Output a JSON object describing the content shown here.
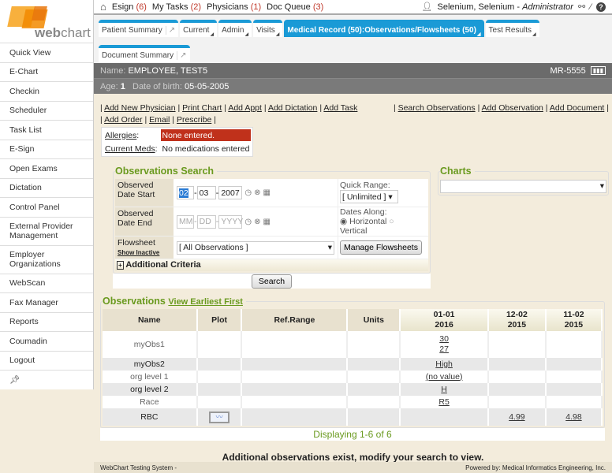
{
  "logo": {
    "text_a": "web",
    "text_b": "chart"
  },
  "sidebar": {
    "items": [
      {
        "label": "Quick View"
      },
      {
        "label": "E-Chart"
      },
      {
        "label": "Checkin"
      },
      {
        "label": "Scheduler"
      },
      {
        "label": "Task List"
      },
      {
        "label": "E-Sign"
      },
      {
        "label": "Open Exams"
      },
      {
        "label": "Dictation"
      },
      {
        "label": "Control Panel"
      },
      {
        "label": "External Provider Management"
      },
      {
        "label": "Employer Organizations"
      },
      {
        "label": "WebScan"
      },
      {
        "label": "Fax Manager"
      },
      {
        "label": "Reports"
      },
      {
        "label": "Coumadin"
      },
      {
        "label": "Logout"
      }
    ],
    "pin_icon": "pin-icon"
  },
  "topbar": {
    "nav": [
      {
        "label": "Esign",
        "count": "(6)"
      },
      {
        "label": "My Tasks",
        "count": "(2)"
      },
      {
        "label": "Physicians",
        "count": "(1)"
      },
      {
        "label": "Doc Queue",
        "count": "(3)"
      }
    ],
    "user": "Selenium, Selenium -",
    "role": "Administrator"
  },
  "tabs": [
    {
      "label": "Patient Summary",
      "ext": "↗"
    },
    {
      "label": "Current"
    },
    {
      "label": "Admin"
    },
    {
      "label": "Visits"
    },
    {
      "label": "Medical Record (50):Observations/Flowsheets (50)",
      "active": true
    },
    {
      "label": "Test Results"
    },
    {
      "label": "Document Summary",
      "ext": "↗"
    }
  ],
  "patient": {
    "name_label": "Name:",
    "name": "EMPLOYEE, TEST5",
    "mr": "MR-5555",
    "age_label": "Age:",
    "age": "1",
    "dob_label": "Date of birth:",
    "dob": "05-05-2005"
  },
  "links": {
    "left": [
      "Add New Physician",
      "Print Chart",
      "Add Appt",
      "Add Dictation",
      "Add Task",
      "Add Order",
      "Email",
      "Prescribe"
    ],
    "right": [
      "Search Observations",
      "Add Observation",
      "Add Document"
    ]
  },
  "allergies": {
    "label": "Allergies",
    "value": "None entered.",
    "meds_label": "Current Meds",
    "meds_value": "No medications entered"
  },
  "search": {
    "title": "Observations Search",
    "start_label": "Observed Date Start",
    "start": {
      "mm": "02",
      "dd": "03",
      "yyyy": "2007"
    },
    "end_label": "Observed Date End",
    "end_placeholder": {
      "mm": "MM",
      "dd": "DD",
      "yyyy": "YYYY"
    },
    "quick_range_label": "Quick Range:",
    "quick_range": "[ Unlimited ]",
    "dates_along_label": "Dates Along:",
    "horizontal": "Horizontal",
    "vertical": "Vertical",
    "flowsheet_label": "Flowsheet",
    "show_inactive": "Show Inactive",
    "flowsheet_value": "[ All Observations ]",
    "manage_button": "Manage Flowsheets",
    "additional": "Additional Criteria",
    "search_button": "Search"
  },
  "charts": {
    "title": "Charts",
    "value": ""
  },
  "observations": {
    "title": "Observations",
    "view_link": "View Earliest First",
    "columns": [
      "Name",
      "Plot",
      "Ref.Range",
      "Units"
    ],
    "dates": [
      [
        "01-01",
        "2016"
      ],
      [
        "12-02",
        "2015"
      ],
      [
        "11-02",
        "2015"
      ]
    ],
    "rows": [
      {
        "name": "myObs1",
        "values": [
          [
            "30",
            "27"
          ],
          [],
          []
        ]
      },
      {
        "name": "myObs2",
        "values": [
          [
            "High"
          ],
          [],
          []
        ]
      },
      {
        "name": "org level 1",
        "values": [
          [
            "(no value)"
          ],
          [],
          []
        ]
      },
      {
        "name": "org level 2",
        "values": [
          [
            "H"
          ],
          [],
          []
        ]
      },
      {
        "name": "Race",
        "values": [
          [
            "R5"
          ],
          [],
          []
        ]
      },
      {
        "name": "RBC",
        "plot": true,
        "values": [
          [],
          [
            "4.99"
          ],
          [
            "4.98"
          ]
        ]
      }
    ],
    "displaying": "Displaying 1-6 of 6",
    "notice": "Additional observations exist, modify your search to view."
  },
  "footer": {
    "left": "WebChart Testing System -",
    "right": "Powered by: Medical Informatics Engineering, Inc."
  }
}
